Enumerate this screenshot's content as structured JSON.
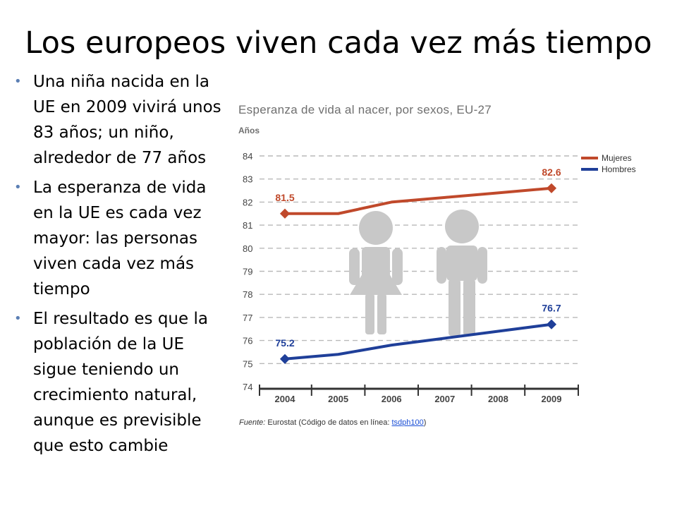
{
  "slide": {
    "title": "Los europeos viven cada vez más tiempo",
    "bullets": [
      "Una niña nacida en la UE en 2009 vivirá unos 83 años; un niño, alrededor de 77 años",
      "La esperanza de vida en la UE es cada vez mayor: las personas viven cada vez más tiempo",
      "El resultado es que la población de la UE sigue teniendo un crecimiento natural, aunque es previsible que esto cambie"
    ]
  },
  "source": {
    "label": "Fuente:",
    "text": "Eurostat (Código de datos en línea: ",
    "link": "tsdph100",
    "close": ")"
  },
  "icons": [
    "woman-figure-icon",
    "man-figure-icon"
  ],
  "chart_data": {
    "type": "line",
    "title": "Esperanza de vida al nacer, por sexos, EU-27",
    "ylabel": "Años",
    "categories": [
      "2004",
      "2005",
      "2006",
      "2007",
      "2008",
      "2009"
    ],
    "ylim": [
      74,
      84
    ],
    "yticks": [
      "74",
      "75",
      "76",
      "77",
      "78",
      "79",
      "80",
      "81",
      "82",
      "83",
      "84"
    ],
    "grid": true,
    "legend_position": "top-right",
    "series": [
      {
        "name": "Mujeres",
        "color": "#c0492b",
        "values": [
          81.5,
          81.5,
          82.0,
          82.2,
          82.4,
          82.6
        ],
        "labels": [
          "81.5",
          "",
          "",
          "",
          "",
          "82.6"
        ]
      },
      {
        "name": "Hombres",
        "color": "#1f3f99",
        "values": [
          75.2,
          75.4,
          75.8,
          76.1,
          76.4,
          76.7
        ],
        "labels": [
          "75.2",
          "",
          "",
          "",
          "",
          "76.7"
        ]
      }
    ]
  }
}
